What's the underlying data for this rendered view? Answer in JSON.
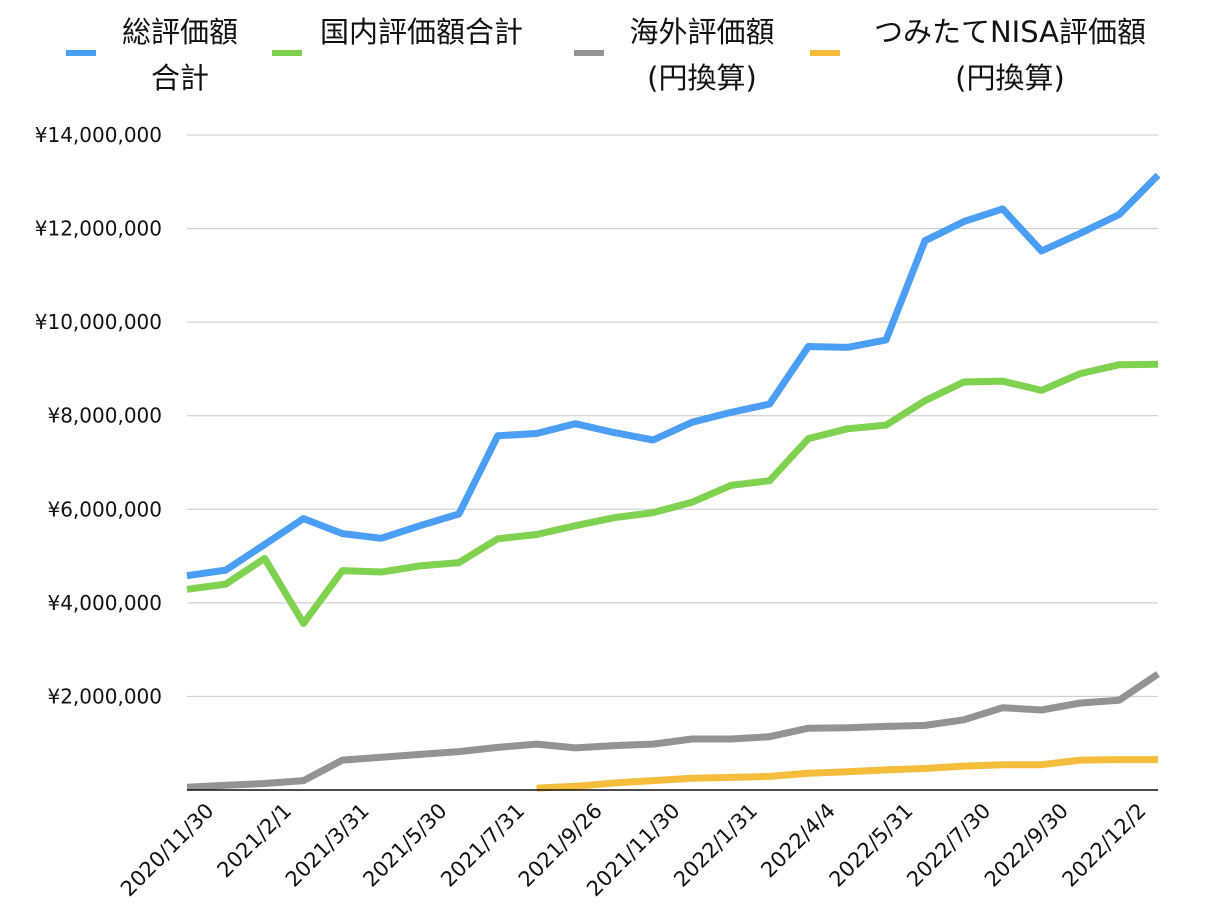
{
  "chart_data": {
    "type": "line",
    "title": "",
    "xlabel": "",
    "ylabel": "",
    "ylim": [
      0,
      14000000
    ],
    "yticks": [
      2000000,
      4000000,
      6000000,
      8000000,
      10000000,
      12000000,
      14000000
    ],
    "ytick_labels": [
      "¥2,000,000",
      "¥4,000,000",
      "¥6,000,000",
      "¥8,000,000",
      "¥10,000,000",
      "¥12,000,000",
      "¥14,000,000"
    ],
    "grid": true,
    "legend_position": "top",
    "x_tick_labels": [
      "2020/11/30",
      "2021/2/1",
      "2021/3/31",
      "2021/5/30",
      "2021/7/31",
      "2021/9/26",
      "2021/11/30",
      "2022/1/31",
      "2022/4/4",
      "2022/5/31",
      "2022/7/30",
      "2022/9/30",
      "2022/12/2"
    ],
    "series": [
      {
        "name": "総評価額合計",
        "legend_lines": [
          "総評価額",
          "合計"
        ],
        "color": "#4a9ff5",
        "values": [
          4580000,
          4700000,
          5250000,
          5800000,
          5480000,
          5380000,
          5650000,
          5900000,
          7570000,
          7620000,
          7830000,
          7640000,
          7480000,
          7860000,
          8070000,
          8250000,
          9480000,
          9460000,
          9620000,
          11740000,
          12150000,
          12420000,
          11520000,
          11900000,
          12300000,
          13140000
        ]
      },
      {
        "name": "国内評価額合計",
        "legend_lines": [
          "国内評価額合計"
        ],
        "color": "#7fd150",
        "values": [
          4290000,
          4400000,
          4950000,
          3560000,
          4690000,
          4660000,
          4790000,
          4860000,
          5370000,
          5460000,
          5650000,
          5820000,
          5930000,
          6150000,
          6510000,
          6610000,
          7510000,
          7720000,
          7800000,
          8320000,
          8720000,
          8740000,
          8540000,
          8900000,
          9090000,
          9100000
        ]
      },
      {
        "name": "海外評価額(円換算)",
        "legend_lines": [
          "海外評価額",
          "(円換算)"
        ],
        "color": "#939393",
        "values": [
          60000,
          100000,
          140000,
          200000,
          640000,
          700000,
          760000,
          820000,
          910000,
          980000,
          900000,
          950000,
          980000,
          1090000,
          1090000,
          1140000,
          1320000,
          1330000,
          1360000,
          1380000,
          1500000,
          1760000,
          1710000,
          1860000,
          1920000,
          2480000
        ]
      },
      {
        "name": "つみたてNISA評価額(円換算)",
        "legend_lines": [
          "つみたてNISA評価額",
          "(円換算)"
        ],
        "color": "#f4bd3c",
        "values": [
          null,
          null,
          null,
          null,
          null,
          null,
          null,
          null,
          null,
          40000,
          80000,
          150000,
          200000,
          250000,
          270000,
          290000,
          360000,
          390000,
          430000,
          460000,
          510000,
          540000,
          540000,
          640000,
          650000,
          650000
        ]
      }
    ]
  }
}
